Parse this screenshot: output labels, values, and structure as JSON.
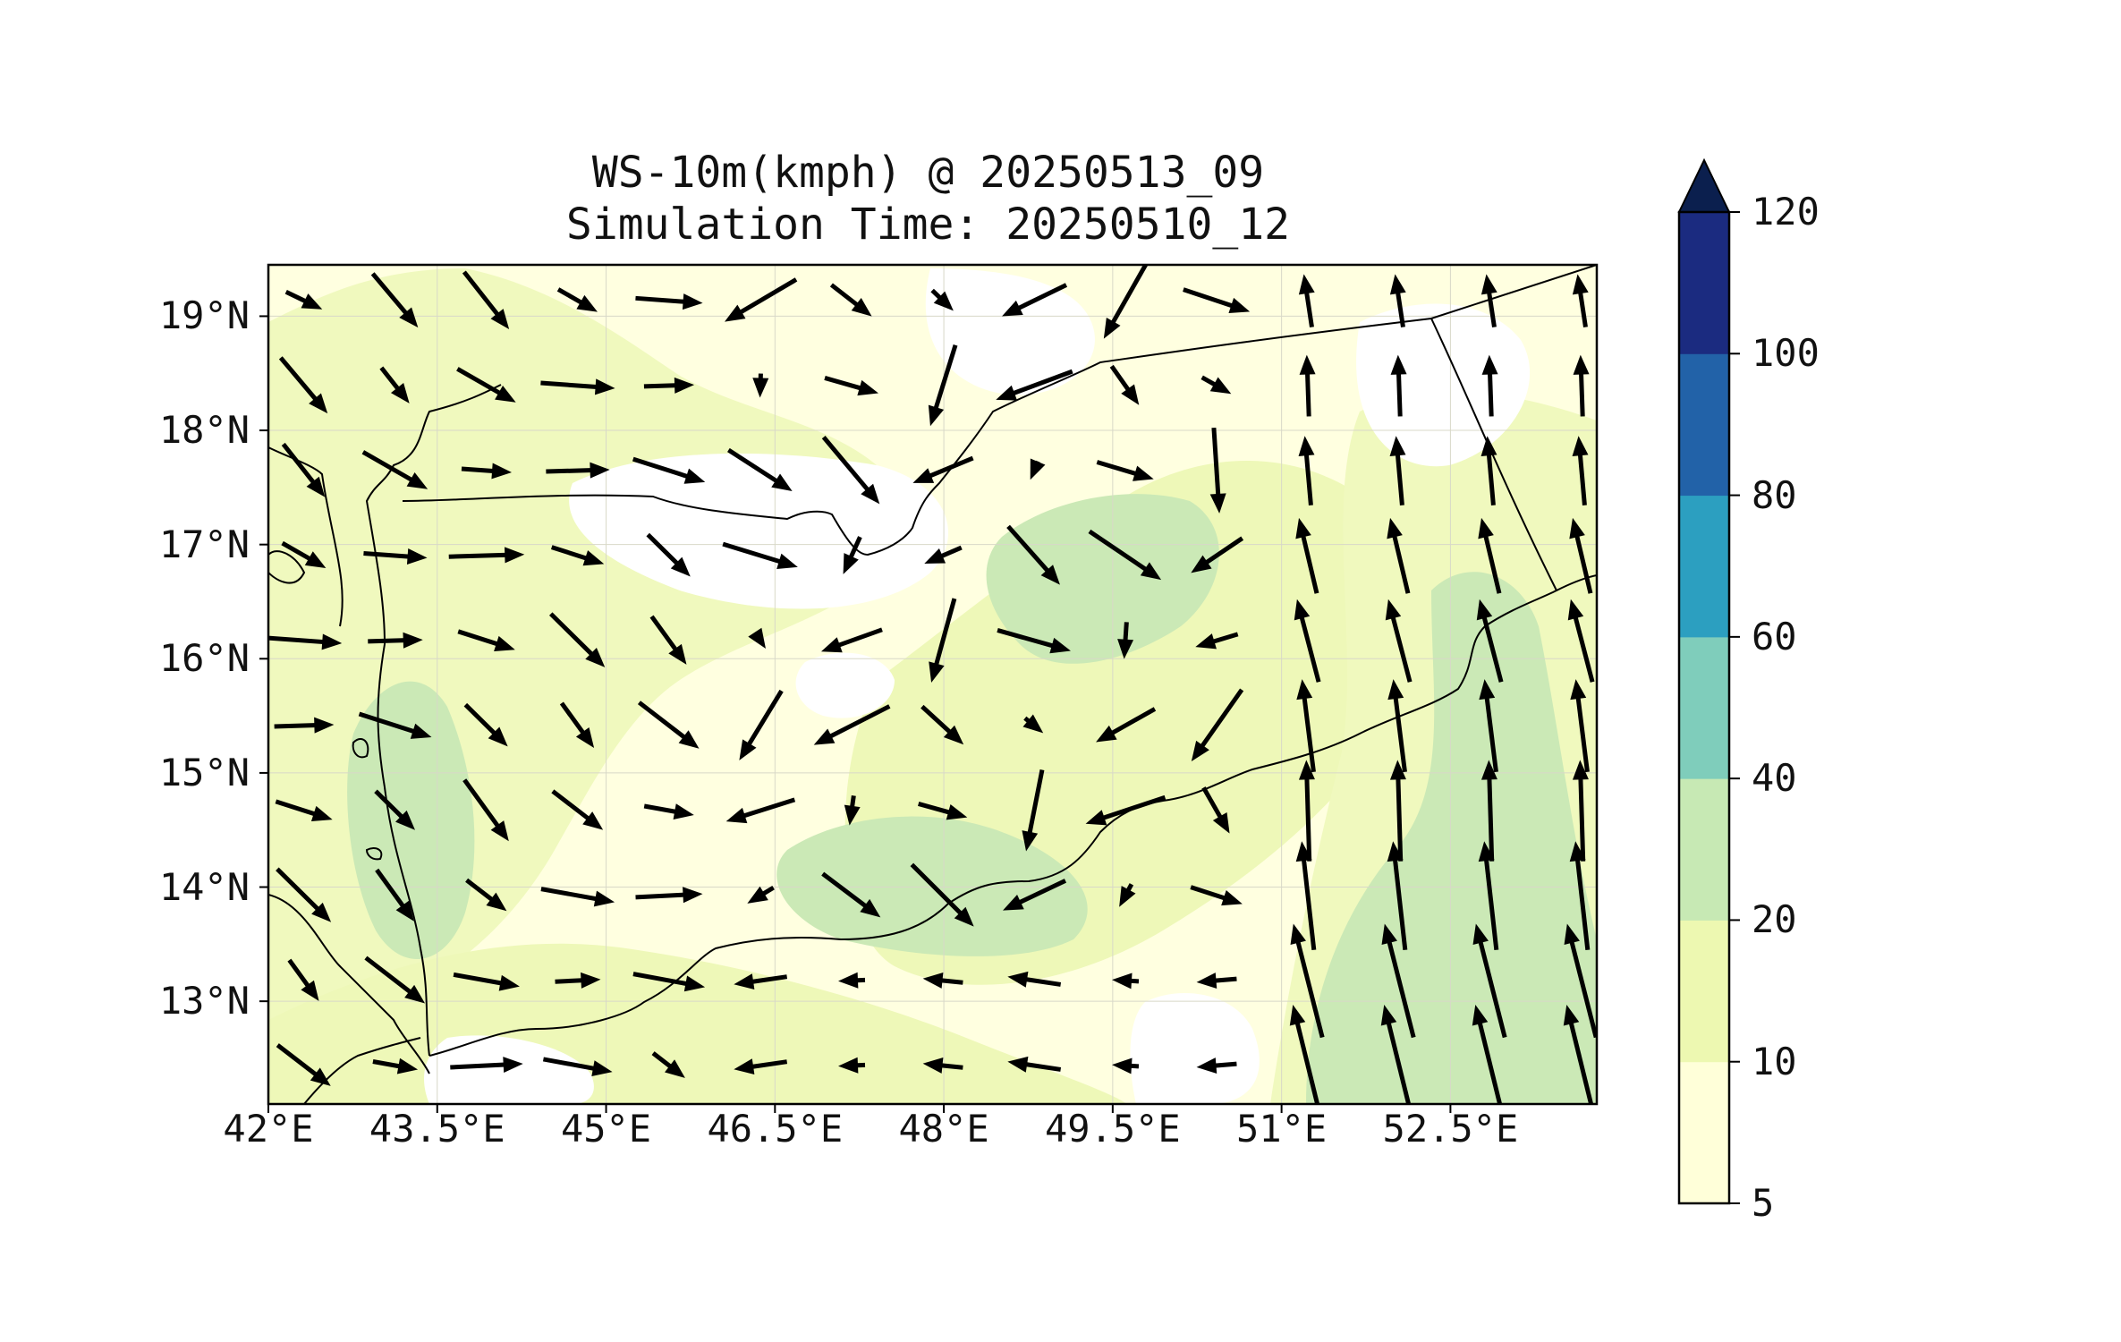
{
  "title": {
    "line1": "WS-10m(kmph) @ 20250513_09",
    "line2": "Simulation Time: 20250510_12"
  },
  "map": {
    "lon_range": [
      42.0,
      53.8
    ],
    "lat_range": [
      12.1,
      19.45
    ],
    "x_ticks": [
      {
        "value": 42.0,
        "label": "42°E"
      },
      {
        "value": 43.5,
        "label": "43.5°E"
      },
      {
        "value": 45.0,
        "label": "45°E"
      },
      {
        "value": 46.5,
        "label": "46.5°E"
      },
      {
        "value": 48.0,
        "label": "48°E"
      },
      {
        "value": 49.5,
        "label": "49.5°E"
      },
      {
        "value": 51.0,
        "label": "51°E"
      },
      {
        "value": 52.5,
        "label": "52.5°E"
      }
    ],
    "y_ticks": [
      {
        "value": 19,
        "label": "19°N"
      },
      {
        "value": 18,
        "label": "18°N"
      },
      {
        "value": 17,
        "label": "17°N"
      },
      {
        "value": 16,
        "label": "16°N"
      },
      {
        "value": 15,
        "label": "15°N"
      },
      {
        "value": 14,
        "label": "14°N"
      },
      {
        "value": 13,
        "label": "13°N"
      }
    ],
    "gridlines": true,
    "background_color": "#ffffe0"
  },
  "colorbar": {
    "levels": [
      5,
      10,
      20,
      40,
      60,
      80,
      100,
      120
    ],
    "labels": [
      "5",
      "10",
      "20",
      "40",
      "60",
      "80",
      "100",
      "120"
    ],
    "colors": [
      "#ffffd9",
      "#edf8b1",
      "#c7e9b4",
      "#7fcdbb",
      "#2c9fc0",
      "#2262a8",
      "#1b2b80"
    ],
    "extend_color": "#0b1f4e",
    "extend": "max"
  }
}
